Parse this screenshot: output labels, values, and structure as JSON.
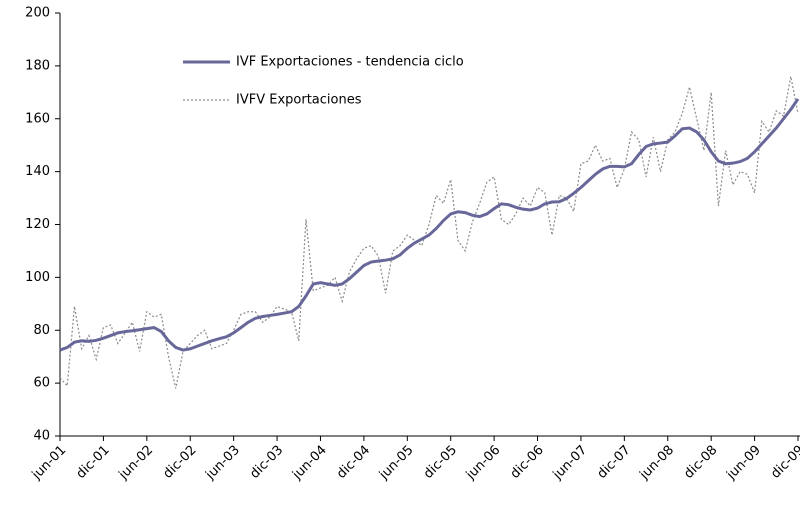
{
  "chart_data": {
    "type": "line",
    "categories": [
      "jun-01",
      null,
      null,
      null,
      null,
      null,
      "dic-01",
      null,
      null,
      null,
      null,
      null,
      "jun-02",
      null,
      null,
      null,
      null,
      null,
      "dic-02",
      null,
      null,
      null,
      null,
      null,
      "jun-03",
      null,
      null,
      null,
      null,
      null,
      "dic-03",
      null,
      null,
      null,
      null,
      null,
      "jun-04",
      null,
      null,
      null,
      null,
      null,
      "dic-04",
      null,
      null,
      null,
      null,
      null,
      "jun-05",
      null,
      null,
      null,
      null,
      null,
      "dic-05",
      null,
      null,
      null,
      null,
      null,
      "jun-06",
      null,
      null,
      null,
      null,
      null,
      "dic-06",
      null,
      null,
      null,
      null,
      null,
      "jun-07",
      null,
      null,
      null,
      null,
      null,
      "dic-07",
      null,
      null,
      null,
      null,
      null,
      "jun-08",
      null,
      null,
      null,
      null,
      null,
      "dic-08",
      null,
      null,
      null,
      null,
      null,
      "jun-09",
      null,
      null,
      null,
      null,
      null,
      "dic-09"
    ],
    "series": [
      {
        "name": "IVF Exportaciones - tendencia ciclo",
        "color": "#67679a",
        "values": [
          72.5,
          73.5,
          75.5,
          76,
          75.8,
          76.2,
          77,
          78,
          79,
          79.5,
          79.8,
          80.2,
          80.6,
          81,
          79.5,
          76,
          73.5,
          72.5,
          73,
          74,
          75,
          76,
          76.8,
          77.5,
          79,
          81,
          83,
          84.5,
          85.2,
          85.6,
          86,
          86.5,
          87,
          89,
          93,
          97.5,
          98,
          97.5,
          97,
          97.5,
          99.5,
          102,
          104.5,
          105.8,
          106.2,
          106.5,
          107,
          108.5,
          111,
          113,
          114.5,
          116,
          118.5,
          121.5,
          124,
          124.8,
          124.5,
          123.5,
          123,
          124,
          126,
          127.8,
          127.5,
          126.5,
          125.8,
          125.5,
          126.2,
          127.8,
          128.5,
          128.6,
          129.8,
          131.8,
          134,
          136.5,
          139,
          141,
          142,
          142,
          141.8,
          143,
          146.5,
          149.5,
          150.5,
          150.8,
          151.2,
          153.5,
          156.2,
          156.5,
          155,
          152,
          147.5,
          144,
          143,
          143.2,
          143.8,
          145,
          147.5,
          150.5,
          153.5,
          156.5,
          160,
          163.5,
          167.5
        ]
      },
      {
        "name": "IVFV Exportaciones",
        "color": "#8a8a8a",
        "dashed": true,
        "values": [
          62,
          59,
          89,
          73,
          78,
          69,
          81,
          82,
          75,
          79,
          83,
          72,
          87,
          85,
          86,
          70,
          58,
          72,
          75,
          78,
          80,
          73,
          74,
          75,
          80,
          86,
          87,
          87,
          83,
          85,
          89,
          88,
          87,
          76,
          122,
          95,
          96,
          97,
          100,
          91,
          102,
          107,
          111,
          112,
          108,
          94,
          110,
          112,
          116,
          114,
          112,
          120,
          131,
          128,
          137,
          114,
          110,
          121,
          128,
          136,
          138,
          122,
          120,
          124,
          130,
          127,
          134,
          132,
          116,
          131,
          130,
          125,
          143,
          144,
          150,
          144,
          145,
          134,
          141,
          155,
          152,
          138,
          153,
          140,
          152,
          155,
          162,
          172,
          160,
          148,
          170,
          127,
          148,
          135,
          140,
          139,
          132,
          159,
          155,
          163,
          161,
          176,
          162
        ]
      }
    ],
    "ylim": [
      40,
      200
    ],
    "yticks": [
      40,
      60,
      80,
      100,
      120,
      140,
      160,
      180,
      200
    ],
    "grid": false,
    "legend": "top-left"
  }
}
